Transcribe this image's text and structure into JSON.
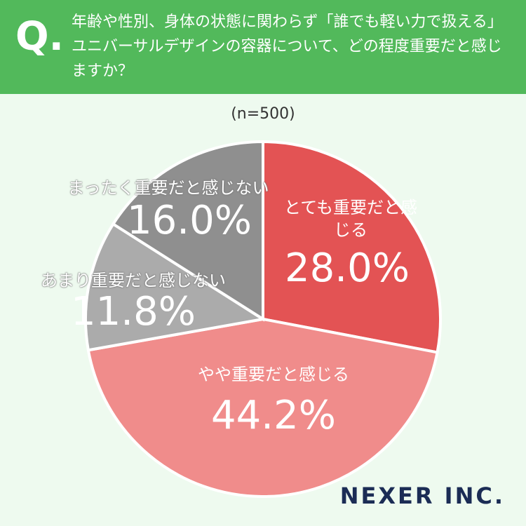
{
  "chart_data": {
    "type": "pie",
    "title_prefix": "Q.",
    "title": "年齢や性別、身体の状態に関わらず「誰でも軽い力で扱える」ユニバーサルデザインの容器について、どの程度重要だと感じますか？",
    "subtitle": "(n=500)",
    "categories": [
      "とても重要だと感じる",
      "やや重要だと感じる",
      "あまり重要だと感じない",
      "まったく重要だと感じない"
    ],
    "values": [
      28.0,
      44.2,
      11.8,
      16.0
    ],
    "value_labels": [
      "28.0%",
      "44.2%",
      "11.8%",
      "16.0%"
    ],
    "colors": [
      "#e35354",
      "#f08c8b",
      "#ababab",
      "#8f8f8f"
    ],
    "brand": "NEXER INC."
  }
}
